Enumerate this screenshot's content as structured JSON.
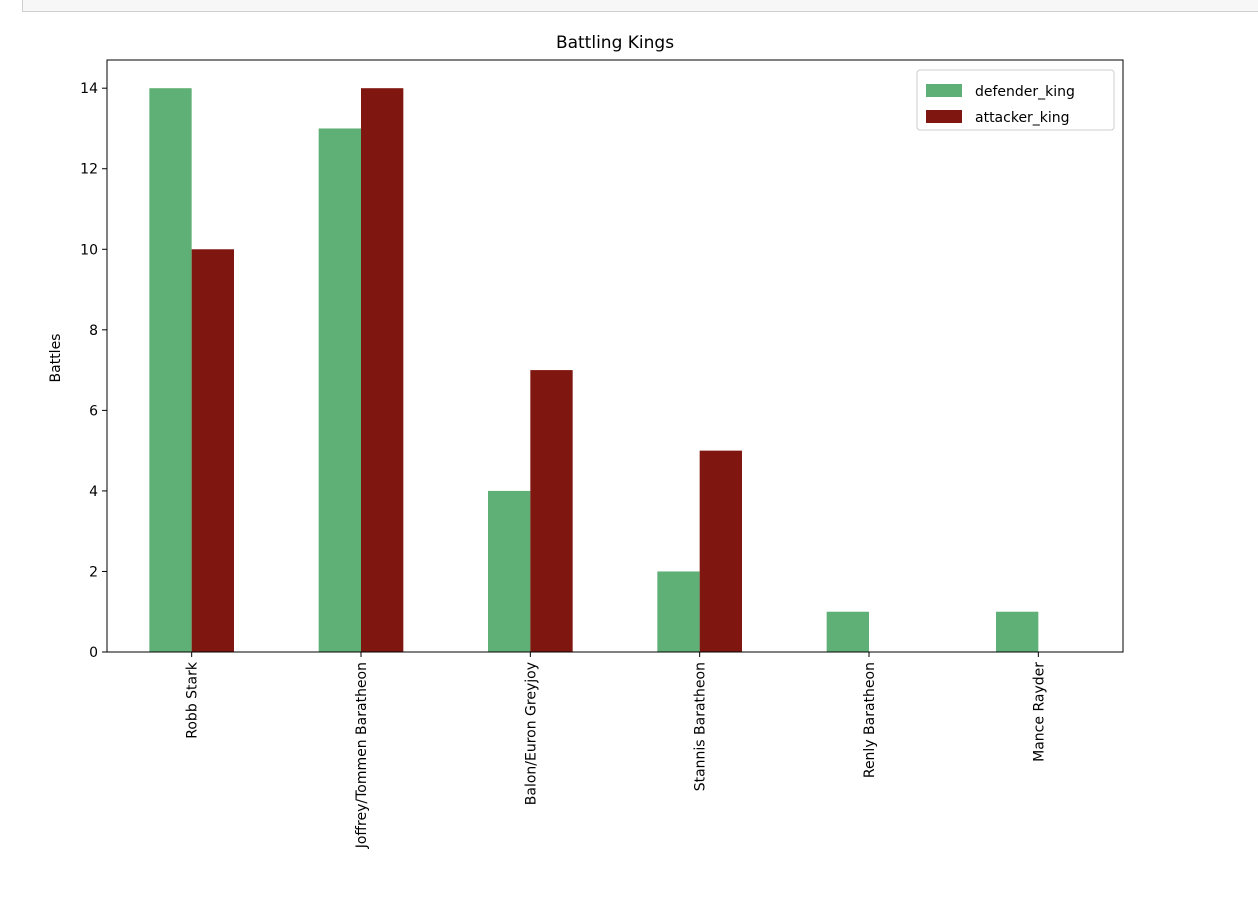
{
  "chart_data": {
    "type": "bar",
    "title": "Battling Kings",
    "xlabel": "",
    "ylabel": "Battles",
    "categories": [
      "Robb Stark",
      "Joffrey/Tommen Baratheon",
      "Balon/Euron Greyjoy",
      "Stannis Baratheon",
      "Renly Baratheon",
      "Mance Rayder"
    ],
    "series": [
      {
        "name": "defender_king",
        "color": "#5fb077",
        "values": [
          14,
          13,
          4,
          2,
          1,
          1
        ]
      },
      {
        "name": "attacker_king",
        "color": "#7f1610",
        "values": [
          10,
          14,
          7,
          5,
          0,
          0
        ]
      }
    ],
    "ylim": [
      0,
      14.7
    ],
    "yticks": [
      "0",
      "2",
      "4",
      "6",
      "8",
      "10",
      "12",
      "14"
    ],
    "grid": false,
    "legend_position": "top-right"
  }
}
